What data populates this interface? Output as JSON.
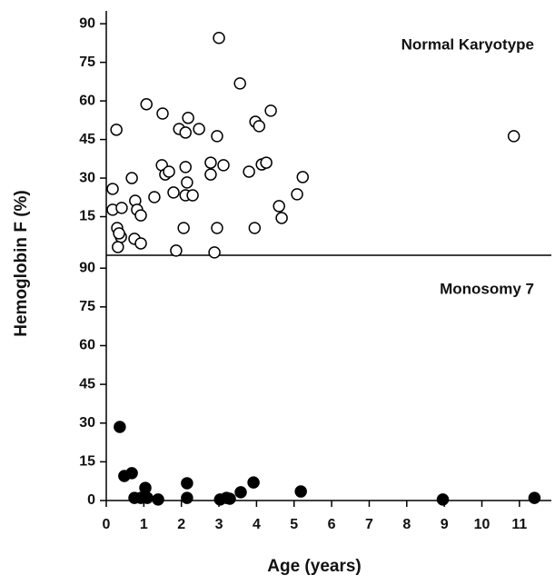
{
  "chart_data": [
    {
      "type": "scatter",
      "title": "Normal Karyotype",
      "ylabel": "Hemoglobin F (%)",
      "color": "#000000",
      "filled": false,
      "x": [
        0.17,
        0.27,
        0.17,
        0.41,
        0.29,
        0.39,
        0.34,
        0.31,
        0.68,
        0.77,
        0.82,
        0.92,
        0.75,
        0.92,
        1.07,
        1.28,
        1.5,
        1.48,
        1.57,
        1.67,
        1.79,
        1.86,
        1.94,
        2.11,
        2.18,
        2.11,
        2.15,
        2.11,
        2.3,
        2.06,
        2.47,
        2.88,
        2.78,
        2.78,
        2.95,
        3.0,
        3.12,
        2.95,
        3.56,
        3.8,
        3.97,
        4.07,
        4.14,
        4.26,
        4.38,
        3.95,
        4.6,
        4.67,
        5.08,
        5.23,
        10.85
      ],
      "values": [
        25.8,
        48.8,
        17.7,
        18.4,
        10.6,
        7.1,
        8.5,
        3.2,
        30,
        21.2,
        17.7,
        15.5,
        6.4,
        4.6,
        58.7,
        22.6,
        55.1,
        35,
        31.4,
        32.5,
        24.4,
        1.8,
        49.1,
        47.7,
        53.4,
        34.3,
        28.3,
        23.3,
        23.3,
        10.6,
        49.1,
        1.1,
        36,
        31.4,
        46.3,
        84.5,
        35,
        10.6,
        66.8,
        32.5,
        51.9,
        50.2,
        35.3,
        36,
        56.2,
        10.6,
        19.1,
        14.5,
        23.7,
        30.4,
        46.3
      ],
      "xlim": [
        0,
        11.85
      ],
      "ylim": [
        0,
        95
      ],
      "yticks": [
        15,
        30,
        45,
        60,
        75,
        90
      ]
    },
    {
      "type": "scatter",
      "title": "Monosomy 7",
      "xlabel": "Age (years)",
      "color": "#000000",
      "filled": true,
      "x": [
        0.36,
        0.48,
        0.68,
        0.75,
        0.92,
        1.04,
        1.09,
        1.0,
        1.38,
        2.15,
        2.15,
        3.03,
        3.2,
        3.29,
        3.58,
        3.92,
        5.18,
        8.96,
        11.4
      ],
      "values": [
        28.5,
        9.5,
        10.6,
        1,
        1,
        4.9,
        1,
        1.3,
        0.4,
        6.7,
        1,
        0.4,
        1,
        0.7,
        3.2,
        7,
        3.5,
        0.4,
        1
      ],
      "xlim": [
        0,
        11.85
      ],
      "ylim": [
        0,
        95
      ],
      "yticks": [
        0,
        15,
        30,
        45,
        60,
        75,
        90
      ],
      "xticks": [
        0,
        1,
        2,
        3,
        4,
        5,
        6,
        7,
        8,
        9,
        10,
        11
      ]
    }
  ]
}
